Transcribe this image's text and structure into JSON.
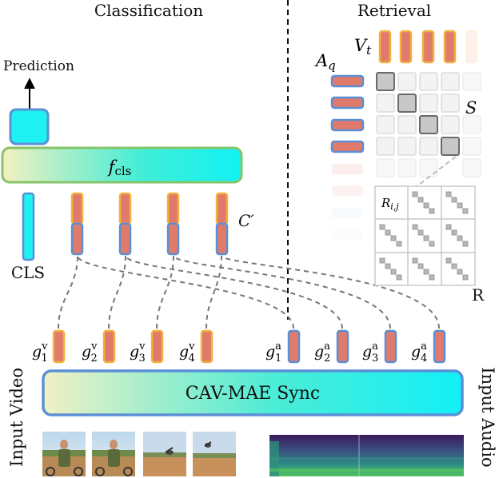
{
  "headings": {
    "classification": "Classification",
    "retrieval": "Retrieval"
  },
  "labels": {
    "prediction": "Prediction",
    "f_main": "f",
    "f_sub": "cls",
    "cls": "CLS",
    "c_prime": "C′",
    "v_main": "V",
    "v_sub": "t",
    "a_main": "A",
    "a_sub": "q",
    "s": "S",
    "r_main": "R",
    "r_sub": "i,j",
    "r": "R",
    "encoder": "CAV-MAE Sync",
    "input_video": "Input Video",
    "input_audio": "Input Audio"
  },
  "tokens": {
    "video": [
      {
        "main": "g",
        "sub": "1",
        "sup": "v"
      },
      {
        "main": "g",
        "sub": "2",
        "sup": "v"
      },
      {
        "main": "g",
        "sub": "3",
        "sup": "v"
      },
      {
        "main": "g",
        "sub": "4",
        "sup": "v"
      }
    ],
    "audio": [
      {
        "main": "g",
        "sub": "1",
        "sup": "a"
      },
      {
        "main": "g",
        "sub": "2",
        "sup": "a"
      },
      {
        "main": "g",
        "sub": "3",
        "sup": "a"
      },
      {
        "main": "g",
        "sub": "4",
        "sup": "a"
      }
    ]
  },
  "colors": {
    "cyan": "#1ff0f2",
    "salmon": "#e07b6c",
    "orange_border": "#f3b13d",
    "blue_border": "#5b8fd6",
    "green_border": "#7fc46a",
    "dashed": "#777777"
  }
}
